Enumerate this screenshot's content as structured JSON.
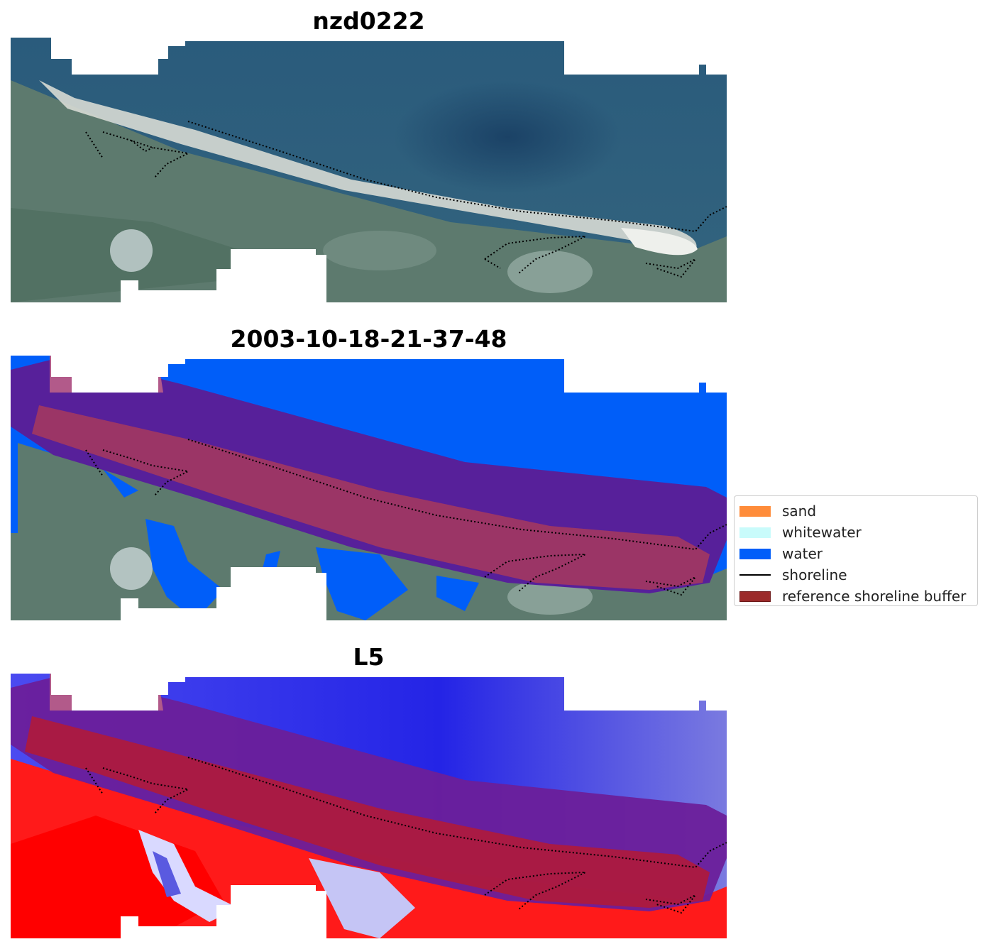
{
  "panels": [
    {
      "title": "nzd0222",
      "kind": "rgb"
    },
    {
      "title": "2003-10-18-21-37-48",
      "kind": "classified"
    },
    {
      "title": "L5",
      "kind": "index"
    }
  ],
  "legend": {
    "items": [
      {
        "label": "sand",
        "color": "#ff8c3a",
        "style": "patch"
      },
      {
        "label": "whitewater",
        "color": "#c9fbfb",
        "style": "patch"
      },
      {
        "label": "water",
        "color": "#005ef9",
        "style": "patch"
      },
      {
        "label": "shoreline",
        "color": "#000000",
        "style": "line"
      },
      {
        "label": "reference shoreline buffer",
        "color": "#9b2a2a",
        "style": "patch",
        "edge": "#6d1717"
      }
    ]
  },
  "colors": {
    "sea": "#2d5f80",
    "sea_dark": "#1f4a6c",
    "land": "#5d7a6e",
    "beach": "#d9dcd6",
    "water_class": "#005ef9",
    "buffer_purple": "#57209a",
    "buffer_red": "#9b2a55",
    "index_blue": "#3a3ae8",
    "index_red": "#ff1010"
  }
}
